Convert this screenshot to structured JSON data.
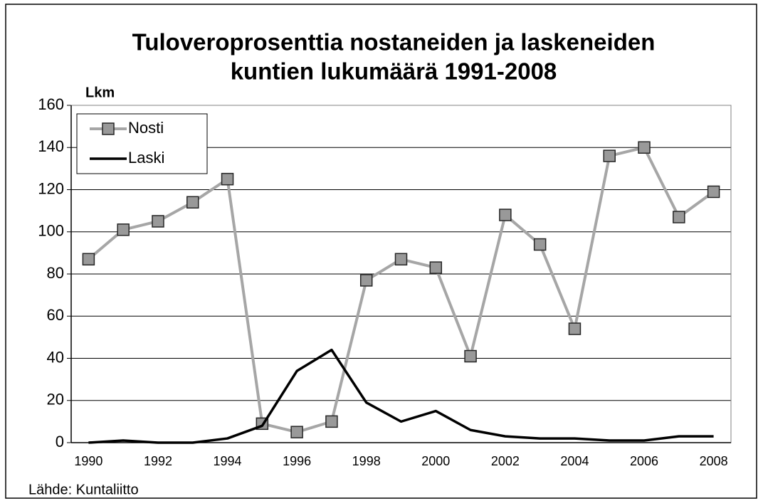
{
  "chart_data": {
    "type": "line",
    "title": [
      "Tuloveroprosenttia nostaneiden ja laskeneiden",
      "kuntien lukumäärä 1991-2008"
    ],
    "y_label": "Lkm",
    "source": "Lähde: Kuntaliitto",
    "categories": [
      "1990",
      null,
      "1992",
      null,
      "1994",
      null,
      "1996",
      null,
      "1998",
      null,
      "2000",
      null,
      "2002",
      null,
      "2004",
      null,
      "2006",
      null,
      "2008"
    ],
    "series": [
      {
        "name": "Nosti",
        "color": "#a6a6a6",
        "marker": "square",
        "values": [
          87,
          101,
          105,
          114,
          125,
          9,
          5,
          10,
          77,
          87,
          83,
          41,
          108,
          94,
          54,
          136,
          140,
          107,
          119
        ]
      },
      {
        "name": "Laski",
        "color": "#000000",
        "values": [
          0,
          1,
          0,
          0,
          2,
          8,
          34,
          44,
          19,
          10,
          15,
          6,
          3,
          2,
          2,
          1,
          1,
          3,
          3
        ]
      }
    ],
    "ylim": [
      0,
      160
    ],
    "yticks": [
      0,
      20,
      40,
      60,
      80,
      100,
      120,
      140,
      160
    ],
    "grid": true,
    "legend": "upper left"
  }
}
